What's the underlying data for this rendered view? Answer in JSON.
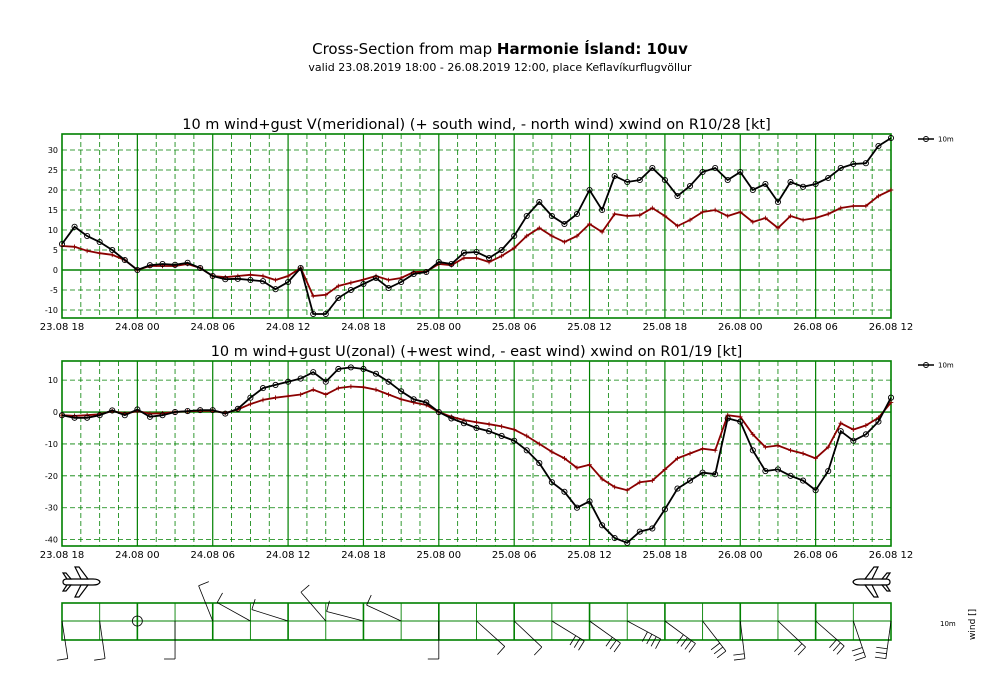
{
  "header": {
    "title_prefix": "Cross-Section from map ",
    "title_bold": "Harmonie Ísland: 10uv",
    "subtitle": "valid 23.08.2019 18:00 - 26.08.2019 12:00, place Keflavíkurflugvöllur"
  },
  "colors": {
    "frame": "#008000",
    "grid": "#008000",
    "wind": "#000000",
    "crosswind": "#8b0000"
  },
  "time_labels": [
    "23.08 18",
    "24.08 00",
    "24.08 06",
    "24.08 12",
    "24.08 18",
    "25.08 00",
    "25.08 06",
    "25.08 12",
    "25.08 18",
    "26.08 00",
    "26.08 06",
    "26.08 12"
  ],
  "chart_data": [
    {
      "type": "line",
      "title": "10 m wind+gust V(meridional) (+ south wind, - north wind) xwind on R10/28 [kt]",
      "x_hours": [
        0,
        1,
        2,
        3,
        4,
        5,
        6,
        7,
        8,
        9,
        10,
        11,
        12,
        13,
        14,
        15,
        16,
        17,
        18,
        19,
        20,
        21,
        22,
        23,
        24,
        25,
        26,
        27,
        28,
        29,
        30,
        31,
        32,
        33,
        34,
        35,
        36,
        37,
        38,
        39,
        40,
        41,
        42,
        43,
        44,
        45,
        46,
        47,
        48,
        49,
        50,
        51,
        52,
        53,
        54,
        55,
        56,
        57,
        58,
        59,
        60,
        61,
        62,
        63,
        64,
        65,
        66
      ],
      "xlim": [
        0,
        66
      ],
      "ylim": [
        -12,
        34
      ],
      "yticks": [
        -10,
        -5,
        0,
        5,
        10,
        15,
        20,
        25,
        30
      ],
      "legend": "10m",
      "series": [
        {
          "name": "10m",
          "values": [
            6.5,
            10.8,
            8.5,
            7,
            5,
            2.5,
            0,
            1.2,
            1.5,
            1.3,
            1.8,
            0.5,
            -1.5,
            -2.3,
            -2.2,
            -2.5,
            -2.8,
            -4.8,
            -3,
            0.5,
            -11,
            -11,
            -7,
            -5,
            -3.5,
            -2,
            -4.5,
            -3,
            -1,
            -0.5,
            2,
            1.5,
            4.3,
            4.5,
            3,
            5,
            8.5,
            13.5,
            17,
            13.5,
            11.5,
            14,
            20,
            15,
            23.5,
            22,
            22.5,
            25.5,
            22.5,
            18.5,
            21,
            24.5,
            25.5,
            22.5,
            24.5,
            20,
            21.5,
            17,
            22,
            20.8,
            21.5,
            23,
            25.5,
            26.5,
            26.7,
            31,
            33
          ]
        },
        {
          "name": "",
          "values": [
            6,
            5.8,
            4.8,
            4.2,
            3.8,
            2.5,
            0,
            1.0,
            1.0,
            1.0,
            1.5,
            0.5,
            -1.5,
            -1.8,
            -1.5,
            -1.2,
            -1.5,
            -2.5,
            -1.5,
            0.5,
            -6.5,
            -6.2,
            -4,
            -3.2,
            -2.4,
            -1.5,
            -2.5,
            -2,
            -0.5,
            -0.4,
            1.5,
            1.2,
            3,
            3,
            2,
            3.5,
            5.5,
            8.5,
            10.5,
            8.5,
            7,
            8.5,
            11.5,
            9.5,
            14,
            13.5,
            13.7,
            15.5,
            13.5,
            11,
            12.5,
            14.5,
            15,
            13.5,
            14.5,
            12,
            13,
            10.5,
            13.5,
            12.5,
            13,
            14,
            15.5,
            16,
            16,
            18.5,
            20
          ]
        }
      ]
    },
    {
      "type": "line",
      "title": "10 m wind+gust U(zonal) (+west wind, - east wind) xwind on R01/19 [kt]",
      "x_hours": [
        0,
        1,
        2,
        3,
        4,
        5,
        6,
        7,
        8,
        9,
        10,
        11,
        12,
        13,
        14,
        15,
        16,
        17,
        18,
        19,
        20,
        21,
        22,
        23,
        24,
        25,
        26,
        27,
        28,
        29,
        30,
        31,
        32,
        33,
        34,
        35,
        36,
        37,
        38,
        39,
        40,
        41,
        42,
        43,
        44,
        45,
        46,
        47,
        48,
        49,
        50,
        51,
        52,
        53,
        54,
        55,
        56,
        57,
        58,
        59,
        60,
        61,
        62,
        63,
        64,
        65,
        66
      ],
      "xlim": [
        0,
        66
      ],
      "ylim": [
        -42,
        16
      ],
      "yticks": [
        -40,
        -30,
        -20,
        -10,
        0,
        10
      ],
      "legend": "10m",
      "series": [
        {
          "name": "10m",
          "values": [
            -1,
            -1.8,
            -1.8,
            -1,
            0.5,
            -1,
            0.8,
            -1.5,
            -1,
            0,
            0.3,
            0.6,
            0.6,
            -0.5,
            1,
            4.5,
            7.5,
            8.5,
            9.5,
            10.5,
            12.5,
            9.5,
            13.5,
            14,
            13.5,
            12,
            9.5,
            6.5,
            4,
            3,
            0,
            -2,
            -3.5,
            -5,
            -6,
            -7.5,
            -9,
            -12,
            -16,
            -22,
            -25,
            -30,
            -28,
            -35.5,
            -39.5,
            -41,
            -37.5,
            -36.5,
            -30.5,
            -24,
            -21.5,
            -19,
            -19.5,
            -2,
            -3,
            -12,
            -18.5,
            -18,
            -20,
            -21.5,
            -24.5,
            -18.5,
            -6,
            -9,
            -7,
            -3,
            4.5
          ]
        },
        {
          "name": "",
          "values": [
            -1,
            -1.2,
            -1,
            -0.7,
            0.3,
            -0.5,
            0.3,
            -0.5,
            -0.4,
            0,
            0.2,
            0.4,
            0.4,
            -0.3,
            0.8,
            2.5,
            3.8,
            4.5,
            5,
            5.5,
            7,
            5.5,
            7.5,
            8,
            7.8,
            7,
            5.5,
            4,
            3,
            2.2,
            0,
            -1.5,
            -2.5,
            -3.2,
            -3.8,
            -4.5,
            -5.5,
            -7.5,
            -10,
            -12.5,
            -14.5,
            -17.5,
            -16.5,
            -21,
            -23.5,
            -24.5,
            -22,
            -21.5,
            -18,
            -14.5,
            -13,
            -11.5,
            -12,
            -1,
            -1.5,
            -7,
            -11,
            -10.5,
            -12,
            -13,
            -14.5,
            -11,
            -3.5,
            -5.5,
            -4.2,
            -1.8,
            3
          ]
        }
      ]
    }
  ],
  "wind_strip": {
    "level_label": "10m",
    "axis_label": "wind []"
  }
}
